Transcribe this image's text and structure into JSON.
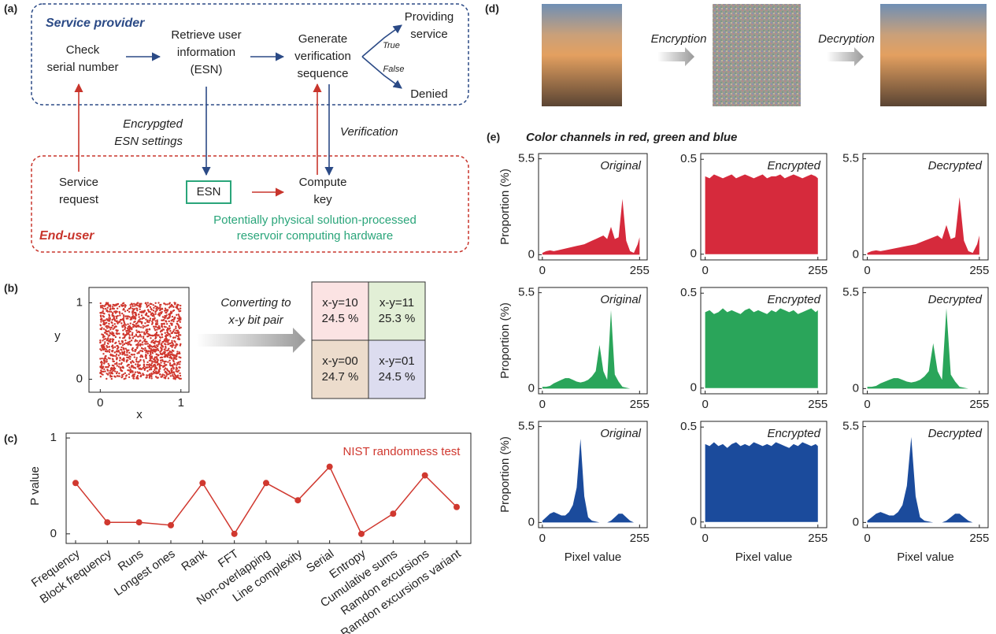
{
  "panel_labels": [
    "(a)",
    "(b)",
    "(c)",
    "(d)",
    "(e)"
  ],
  "diagram": {
    "provider_title": "Service provider",
    "enduser_title": "End-user",
    "nodes": [
      {
        "lines": [
          "Check",
          "serial number"
        ]
      },
      {
        "lines": [
          "Retrieve user",
          "information",
          "(ESN)"
        ]
      },
      {
        "lines": [
          "Generate",
          "verification",
          "sequence"
        ]
      },
      {
        "lines": [
          "Providing",
          "service"
        ]
      },
      {
        "lines": [
          "Denied"
        ]
      },
      {
        "lines": [
          "Service",
          "request"
        ]
      },
      {
        "lines": [
          "ESN"
        ]
      },
      {
        "lines": [
          "Compute",
          "key"
        ]
      },
      {
        "lines": [
          "Encrypgted",
          "ESN settings"
        ]
      },
      {
        "lines": [
          "Verification"
        ]
      },
      {
        "lines": [
          "True"
        ]
      },
      {
        "lines": [
          "False"
        ]
      },
      {
        "lines": [
          "Potentially physical solution-processed",
          "reservoir computing hardware"
        ]
      }
    ]
  },
  "scatter_panel": {
    "xlabel": "x",
    "ylabel": "y",
    "xlim": [
      -0.14,
      1.1
    ],
    "ylim": [
      -0.17,
      1.2
    ],
    "xticks": [
      0,
      1
    ],
    "yticks": [
      0,
      1
    ],
    "arrow_label": [
      "Converting to",
      "x-y bit pair"
    ],
    "cells": [
      {
        "label": "x-y=10",
        "percent": "24.5 %"
      },
      {
        "label": "x-y=11",
        "percent": "25.3 %"
      },
      {
        "label": "x-y=00",
        "percent": "24.7 %"
      },
      {
        "label": "x-y=01",
        "percent": "24.5 %"
      }
    ]
  },
  "image_panel": {
    "encryption_label": "Encryption",
    "decryption_label": "Decryption"
  },
  "histogram_heading": "Color channels in red, green and blue",
  "chart_data": [
    {
      "type": "line",
      "annotation": "NIST randomness test",
      "ylabel": "P value",
      "color": "#d0382f",
      "categories": [
        "Frequency",
        "Block frequency",
        "Runs",
        "Longest ones",
        "Rank",
        "FFT",
        "Non-overlapping",
        "Line complexity",
        "Serial",
        "Entropy",
        "Cumulative sums",
        "Ramdon excursions",
        "Ramdon excursions variant"
      ],
      "values": [
        0.53,
        0.12,
        0.12,
        0.09,
        0.53,
        0.0,
        0.53,
        0.35,
        0.7,
        0.0,
        0.21,
        0.61,
        0.28
      ],
      "ylim": [
        -0.1,
        1.05
      ],
      "yticks": [
        0,
        1
      ]
    },
    {
      "type": "area",
      "title": "Original",
      "ylabel": "Proportion (%)",
      "color": "#d62a3c",
      "xlim": [
        -10,
        275
      ],
      "ylim": [
        -0.3,
        5.8
      ],
      "xticks": [
        0,
        255
      ],
      "yticks": [
        0,
        5.5
      ],
      "x": [
        0,
        10,
        20,
        30,
        40,
        50,
        60,
        70,
        80,
        90,
        100,
        110,
        120,
        130,
        140,
        150,
        160,
        170,
        180,
        190,
        200,
        210,
        220,
        230,
        240,
        250,
        255
      ],
      "values": [
        0.1,
        0.2,
        0.25,
        0.2,
        0.25,
        0.3,
        0.35,
        0.4,
        0.45,
        0.5,
        0.55,
        0.6,
        0.7,
        0.8,
        0.9,
        1.0,
        1.1,
        0.9,
        1.6,
        0.9,
        1.0,
        3.2,
        0.8,
        0.2,
        0.1,
        0.6,
        1.0
      ]
    },
    {
      "type": "area",
      "title": "Encrypted",
      "color": "#d62a3c",
      "xlim": [
        -10,
        275
      ],
      "ylim": [
        -0.03,
        0.53
      ],
      "xticks": [
        0,
        255
      ],
      "yticks": [
        0,
        0.5
      ],
      "x": [
        0,
        10,
        20,
        30,
        40,
        50,
        60,
        70,
        80,
        90,
        100,
        110,
        120,
        130,
        140,
        150,
        160,
        170,
        180,
        190,
        200,
        210,
        220,
        230,
        240,
        250,
        255
      ],
      "values": [
        0.41,
        0.4,
        0.42,
        0.41,
        0.4,
        0.41,
        0.42,
        0.4,
        0.41,
        0.42,
        0.41,
        0.4,
        0.41,
        0.42,
        0.4,
        0.41,
        0.41,
        0.42,
        0.4,
        0.41,
        0.42,
        0.41,
        0.4,
        0.41,
        0.42,
        0.41,
        0.4
      ]
    },
    {
      "type": "area",
      "title": "Decrypted",
      "color": "#d62a3c",
      "xlim": [
        -10,
        275
      ],
      "ylim": [
        -0.3,
        5.8
      ],
      "xticks": [
        0,
        255
      ],
      "yticks": [
        0,
        5.5
      ],
      "x": [
        0,
        10,
        20,
        30,
        40,
        50,
        60,
        70,
        80,
        90,
        100,
        110,
        120,
        130,
        140,
        150,
        160,
        170,
        180,
        190,
        200,
        210,
        220,
        230,
        240,
        250,
        255
      ],
      "values": [
        0.1,
        0.2,
        0.25,
        0.2,
        0.25,
        0.3,
        0.35,
        0.4,
        0.45,
        0.5,
        0.55,
        0.6,
        0.7,
        0.8,
        0.9,
        1.0,
        1.1,
        0.9,
        1.7,
        0.9,
        1.0,
        3.3,
        0.8,
        0.2,
        0.1,
        0.6,
        1.1
      ]
    },
    {
      "type": "area",
      "title": "Original",
      "ylabel": "Proportion (%)",
      "color": "#2aa55a",
      "xlim": [
        -10,
        275
      ],
      "ylim": [
        -0.3,
        5.8
      ],
      "xticks": [
        0,
        255
      ],
      "yticks": [
        0,
        5.5
      ],
      "x": [
        0,
        10,
        20,
        30,
        40,
        50,
        60,
        70,
        80,
        90,
        100,
        110,
        120,
        130,
        140,
        150,
        160,
        170,
        180,
        190,
        200,
        210,
        220,
        230,
        240,
        250,
        255
      ],
      "values": [
        0.1,
        0.1,
        0.15,
        0.3,
        0.4,
        0.5,
        0.6,
        0.6,
        0.5,
        0.4,
        0.35,
        0.4,
        0.5,
        0.7,
        1.0,
        2.5,
        1.0,
        0.5,
        4.5,
        0.8,
        0.4,
        0.1,
        0.05,
        0,
        0,
        0,
        0
      ]
    },
    {
      "type": "area",
      "title": "Encrypted",
      "color": "#2aa55a",
      "xlim": [
        -10,
        275
      ],
      "ylim": [
        -0.03,
        0.53
      ],
      "xticks": [
        0,
        255
      ],
      "yticks": [
        0,
        0.5
      ],
      "x": [
        0,
        10,
        20,
        30,
        40,
        50,
        60,
        70,
        80,
        90,
        100,
        110,
        120,
        130,
        140,
        150,
        160,
        170,
        180,
        190,
        200,
        210,
        220,
        230,
        240,
        250,
        255
      ],
      "values": [
        0.4,
        0.41,
        0.39,
        0.4,
        0.42,
        0.4,
        0.41,
        0.4,
        0.39,
        0.41,
        0.42,
        0.4,
        0.41,
        0.4,
        0.39,
        0.41,
        0.4,
        0.42,
        0.41,
        0.4,
        0.41,
        0.39,
        0.4,
        0.41,
        0.42,
        0.4,
        0.41
      ]
    },
    {
      "type": "area",
      "title": "Decrypted",
      "color": "#2aa55a",
      "xlim": [
        -10,
        275
      ],
      "ylim": [
        -0.3,
        5.8
      ],
      "xticks": [
        0,
        255
      ],
      "yticks": [
        0,
        5.5
      ],
      "x": [
        0,
        10,
        20,
        30,
        40,
        50,
        60,
        70,
        80,
        90,
        100,
        110,
        120,
        130,
        140,
        150,
        160,
        170,
        180,
        190,
        200,
        210,
        220,
        230,
        240,
        250,
        255
      ],
      "values": [
        0.1,
        0.1,
        0.15,
        0.3,
        0.4,
        0.5,
        0.6,
        0.6,
        0.5,
        0.4,
        0.35,
        0.4,
        0.5,
        0.7,
        1.0,
        2.6,
        1.0,
        0.5,
        4.6,
        0.8,
        0.4,
        0.1,
        0.05,
        0,
        0,
        0,
        0
      ]
    },
    {
      "type": "area",
      "title": "Original",
      "ylabel": "Proportion (%)",
      "xlabel": "Pixel value",
      "color": "#1b4b9c",
      "xlim": [
        -10,
        275
      ],
      "ylim": [
        -0.3,
        5.8
      ],
      "xticks": [
        0,
        255
      ],
      "yticks": [
        0,
        5.5
      ],
      "x": [
        0,
        10,
        20,
        30,
        40,
        50,
        60,
        70,
        80,
        90,
        100,
        110,
        120,
        130,
        140,
        150,
        160,
        170,
        180,
        190,
        200,
        210,
        220,
        230,
        240,
        250,
        255
      ],
      "values": [
        0.1,
        0.3,
        0.5,
        0.6,
        0.5,
        0.4,
        0.4,
        0.6,
        1.0,
        2.0,
        4.8,
        1.5,
        0.3,
        0.1,
        0.05,
        0,
        0,
        0,
        0.1,
        0.3,
        0.5,
        0.5,
        0.3,
        0.1,
        0,
        0,
        0
      ]
    },
    {
      "type": "area",
      "title": "Encrypted",
      "xlabel": "Pixel value",
      "color": "#1b4b9c",
      "xlim": [
        -10,
        275
      ],
      "ylim": [
        -0.03,
        0.53
      ],
      "xticks": [
        0,
        255
      ],
      "yticks": [
        0,
        0.5
      ],
      "x": [
        0,
        10,
        20,
        30,
        40,
        50,
        60,
        70,
        80,
        90,
        100,
        110,
        120,
        130,
        140,
        150,
        160,
        170,
        180,
        190,
        200,
        210,
        220,
        230,
        240,
        250,
        255
      ],
      "values": [
        0.41,
        0.4,
        0.42,
        0.4,
        0.41,
        0.39,
        0.41,
        0.42,
        0.4,
        0.41,
        0.4,
        0.42,
        0.41,
        0.4,
        0.41,
        0.4,
        0.42,
        0.41,
        0.4,
        0.39,
        0.41,
        0.4,
        0.42,
        0.41,
        0.4,
        0.41,
        0.4
      ]
    },
    {
      "type": "area",
      "title": "Decrypted",
      "xlabel": "Pixel value",
      "color": "#1b4b9c",
      "xlim": [
        -10,
        275
      ],
      "ylim": [
        -0.3,
        5.8
      ],
      "xticks": [
        0,
        255
      ],
      "yticks": [
        0,
        5.5
      ],
      "x": [
        0,
        10,
        20,
        30,
        40,
        50,
        60,
        70,
        80,
        90,
        100,
        110,
        120,
        130,
        140,
        150,
        160,
        170,
        180,
        190,
        200,
        210,
        220,
        230,
        240,
        250,
        255
      ],
      "values": [
        0.1,
        0.3,
        0.5,
        0.6,
        0.5,
        0.4,
        0.4,
        0.6,
        1.0,
        2.1,
        4.9,
        1.5,
        0.3,
        0.1,
        0.05,
        0,
        0,
        0,
        0.1,
        0.3,
        0.5,
        0.5,
        0.3,
        0.1,
        0,
        0,
        0
      ]
    }
  ]
}
